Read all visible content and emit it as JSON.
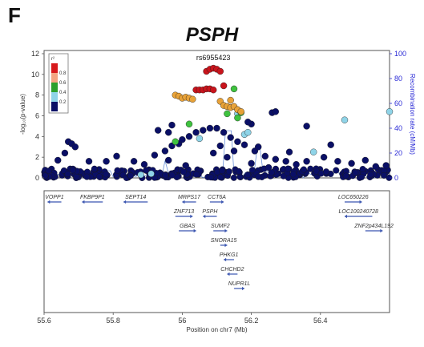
{
  "panel_letter": "F",
  "chart_data": {
    "type": "scatter",
    "title": "PSPH",
    "xlabel": "Position on chr7 (Mb)",
    "ylabel": "-log₁₀(p-value)",
    "y2label": "Recombination rate (cM/Mb)",
    "xlim": [
      55.6,
      56.6
    ],
    "ylim": [
      0,
      12
    ],
    "y2lim": [
      0,
      100
    ],
    "x_ticks": [
      "55.6",
      "55.8",
      "56",
      "56.2",
      "56.4"
    ],
    "y_ticks": [
      "0",
      "2",
      "4",
      "6",
      "8",
      "10",
      "12"
    ],
    "y2_ticks": [
      "0",
      "20",
      "40",
      "60",
      "80",
      "100"
    ],
    "lead_snp": {
      "label": "rs6955423",
      "x": 56.09,
      "y": 10.6
    },
    "legend": {
      "title": "r²",
      "placement": "top-left",
      "levels": [
        {
          "label": "0.8",
          "color": "#d7191c"
        },
        {
          "label": "0.6",
          "color": "#f4a582"
        },
        {
          "label": "0.4",
          "color": "#2ca02c"
        },
        {
          "label": "0.2",
          "color": "#8fd4e8"
        },
        {
          "label": "",
          "color": "#0a0f66"
        }
      ]
    },
    "point_colors": {
      "very_high": "#c9141c",
      "high": "#e8a238",
      "mid": "#3fc23f",
      "low": "#8fd4e8",
      "none": "#0a0f66"
    },
    "groups": [
      {
        "ld": "very_high",
        "points": [
          [
            56.07,
            10.3
          ],
          [
            56.08,
            10.5
          ],
          [
            56.09,
            10.6
          ],
          [
            56.1,
            10.5
          ],
          [
            56.11,
            10.3
          ],
          [
            56.04,
            8.5
          ],
          [
            56.05,
            8.5
          ],
          [
            56.06,
            8.5
          ],
          [
            56.07,
            8.6
          ],
          [
            56.08,
            8.6
          ],
          [
            56.09,
            8.5
          ],
          [
            56.12,
            8.9
          ]
        ]
      },
      {
        "ld": "high",
        "points": [
          [
            55.98,
            8.0
          ],
          [
            55.99,
            7.9
          ],
          [
            56.0,
            7.7
          ],
          [
            56.01,
            7.8
          ],
          [
            56.02,
            7.7
          ],
          [
            56.03,
            7.6
          ],
          [
            56.11,
            7.4
          ],
          [
            56.12,
            7.0
          ],
          [
            56.13,
            6.9
          ],
          [
            56.14,
            6.8
          ],
          [
            56.15,
            6.9
          ],
          [
            56.16,
            6.6
          ],
          [
            56.17,
            6.4
          ],
          [
            56.14,
            7.5
          ]
        ]
      },
      {
        "ld": "mid",
        "points": [
          [
            56.15,
            8.6
          ],
          [
            55.98,
            3.5
          ],
          [
            56.02,
            5.2
          ],
          [
            56.13,
            6.2
          ],
          [
            56.16,
            5.8
          ],
          [
            56.17,
            6.3
          ]
        ]
      },
      {
        "ld": "low",
        "points": [
          [
            56.16,
            6.2
          ],
          [
            56.18,
            4.2
          ],
          [
            56.19,
            4.4
          ],
          [
            56.47,
            5.6
          ],
          [
            56.6,
            6.4
          ],
          [
            56.38,
            2.5
          ],
          [
            55.88,
            0.3
          ],
          [
            55.91,
            0.4
          ],
          [
            56.05,
            3.8
          ]
        ]
      },
      {
        "ld": "none",
        "points": [
          [
            56.2,
            5.2
          ],
          [
            56.26,
            6.3
          ],
          [
            56.36,
            5.0
          ],
          [
            56.27,
            6.4
          ],
          [
            55.97,
            5.1
          ],
          [
            56.19,
            5.4
          ],
          [
            55.93,
            4.6
          ],
          [
            55.96,
            4.4
          ],
          [
            55.67,
            3.5
          ],
          [
            55.68,
            3.3
          ],
          [
            55.69,
            3.0
          ],
          [
            55.66,
            2.4
          ],
          [
            55.64,
            1.7
          ],
          [
            55.73,
            1.6
          ],
          [
            55.78,
            1.6
          ],
          [
            55.81,
            2.1
          ],
          [
            55.86,
            1.6
          ],
          [
            55.89,
            1.3
          ],
          [
            55.92,
            2.2
          ],
          [
            55.95,
            2.6
          ],
          [
            55.97,
            3.1
          ],
          [
            55.99,
            3.3
          ],
          [
            56.0,
            3.7
          ],
          [
            56.02,
            4.0
          ],
          [
            56.04,
            4.4
          ],
          [
            56.06,
            4.6
          ],
          [
            56.08,
            4.8
          ],
          [
            56.1,
            4.8
          ],
          [
            56.12,
            4.4
          ],
          [
            56.14,
            3.9
          ],
          [
            56.16,
            3.5
          ],
          [
            56.18,
            3.2
          ],
          [
            56.21,
            2.6
          ],
          [
            56.24,
            2.1
          ],
          [
            56.27,
            1.8
          ],
          [
            56.3,
            1.6
          ],
          [
            56.33,
            1.3
          ],
          [
            56.36,
            1.6
          ],
          [
            56.41,
            2.0
          ],
          [
            56.45,
            1.6
          ],
          [
            56.49,
            1.4
          ],
          [
            56.53,
            1.7
          ],
          [
            56.56,
            1.1
          ],
          [
            56.59,
            1.2
          ],
          [
            56.09,
            2.4
          ],
          [
            56.13,
            2.0
          ],
          [
            56.2,
            1.4
          ],
          [
            56.25,
            1.0
          ],
          [
            56.01,
            1.2
          ],
          [
            55.96,
            1.7
          ],
          [
            56.11,
            3.1
          ],
          [
            56.15,
            2.6
          ],
          [
            56.22,
            3.0
          ],
          [
            56.31,
            2.5
          ],
          [
            56.43,
            3.2
          ]
        ]
      }
    ],
    "baseline_cloud": {
      "ld": "none",
      "x_range": [
        55.6,
        56.6
      ],
      "y_max": 0.9
    },
    "genes": [
      {
        "name": "VOPP1",
        "start": 55.61,
        "end": 55.65,
        "row": 0,
        "dir": "left"
      },
      {
        "name": "FKBP9P1",
        "start": 55.71,
        "end": 55.77,
        "row": 0,
        "dir": "left"
      },
      {
        "name": "SEPT14",
        "start": 55.83,
        "end": 55.9,
        "row": 0,
        "dir": "left"
      },
      {
        "name": "MRPS17",
        "start": 56.0,
        "end": 56.04,
        "row": 0,
        "dir": "left"
      },
      {
        "name": "CCT6A",
        "start": 56.08,
        "end": 56.12,
        "row": 0,
        "dir": "right"
      },
      {
        "name": "ZNF713",
        "start": 55.98,
        "end": 56.03,
        "row": 1,
        "dir": "right"
      },
      {
        "name": "PSPH",
        "start": 56.06,
        "end": 56.1,
        "row": 1,
        "dir": "left"
      },
      {
        "name": "GBAS",
        "start": 55.99,
        "end": 56.04,
        "row": 2,
        "dir": "right"
      },
      {
        "name": "SUMF2",
        "start": 56.09,
        "end": 56.13,
        "row": 2,
        "dir": "right"
      },
      {
        "name": "SNORA15",
        "start": 56.11,
        "end": 56.13,
        "row": 3,
        "dir": "right"
      },
      {
        "name": "PHKG1",
        "start": 56.12,
        "end": 56.15,
        "row": 4,
        "dir": "left"
      },
      {
        "name": "CHCHD2",
        "start": 56.13,
        "end": 56.16,
        "row": 5,
        "dir": "left"
      },
      {
        "name": "NUPR1L",
        "start": 56.15,
        "end": 56.18,
        "row": 6,
        "dir": "right"
      },
      {
        "name": "LOC650226",
        "start": 56.47,
        "end": 56.52,
        "row": 0,
        "dir": "right"
      },
      {
        "name": "LOC100240728",
        "start": 56.47,
        "end": 56.55,
        "row": 1,
        "dir": "left"
      },
      {
        "name": "ZNF2p434L192",
        "start": 56.53,
        "end": 56.58,
        "row": 2,
        "dir": "right"
      }
    ]
  }
}
